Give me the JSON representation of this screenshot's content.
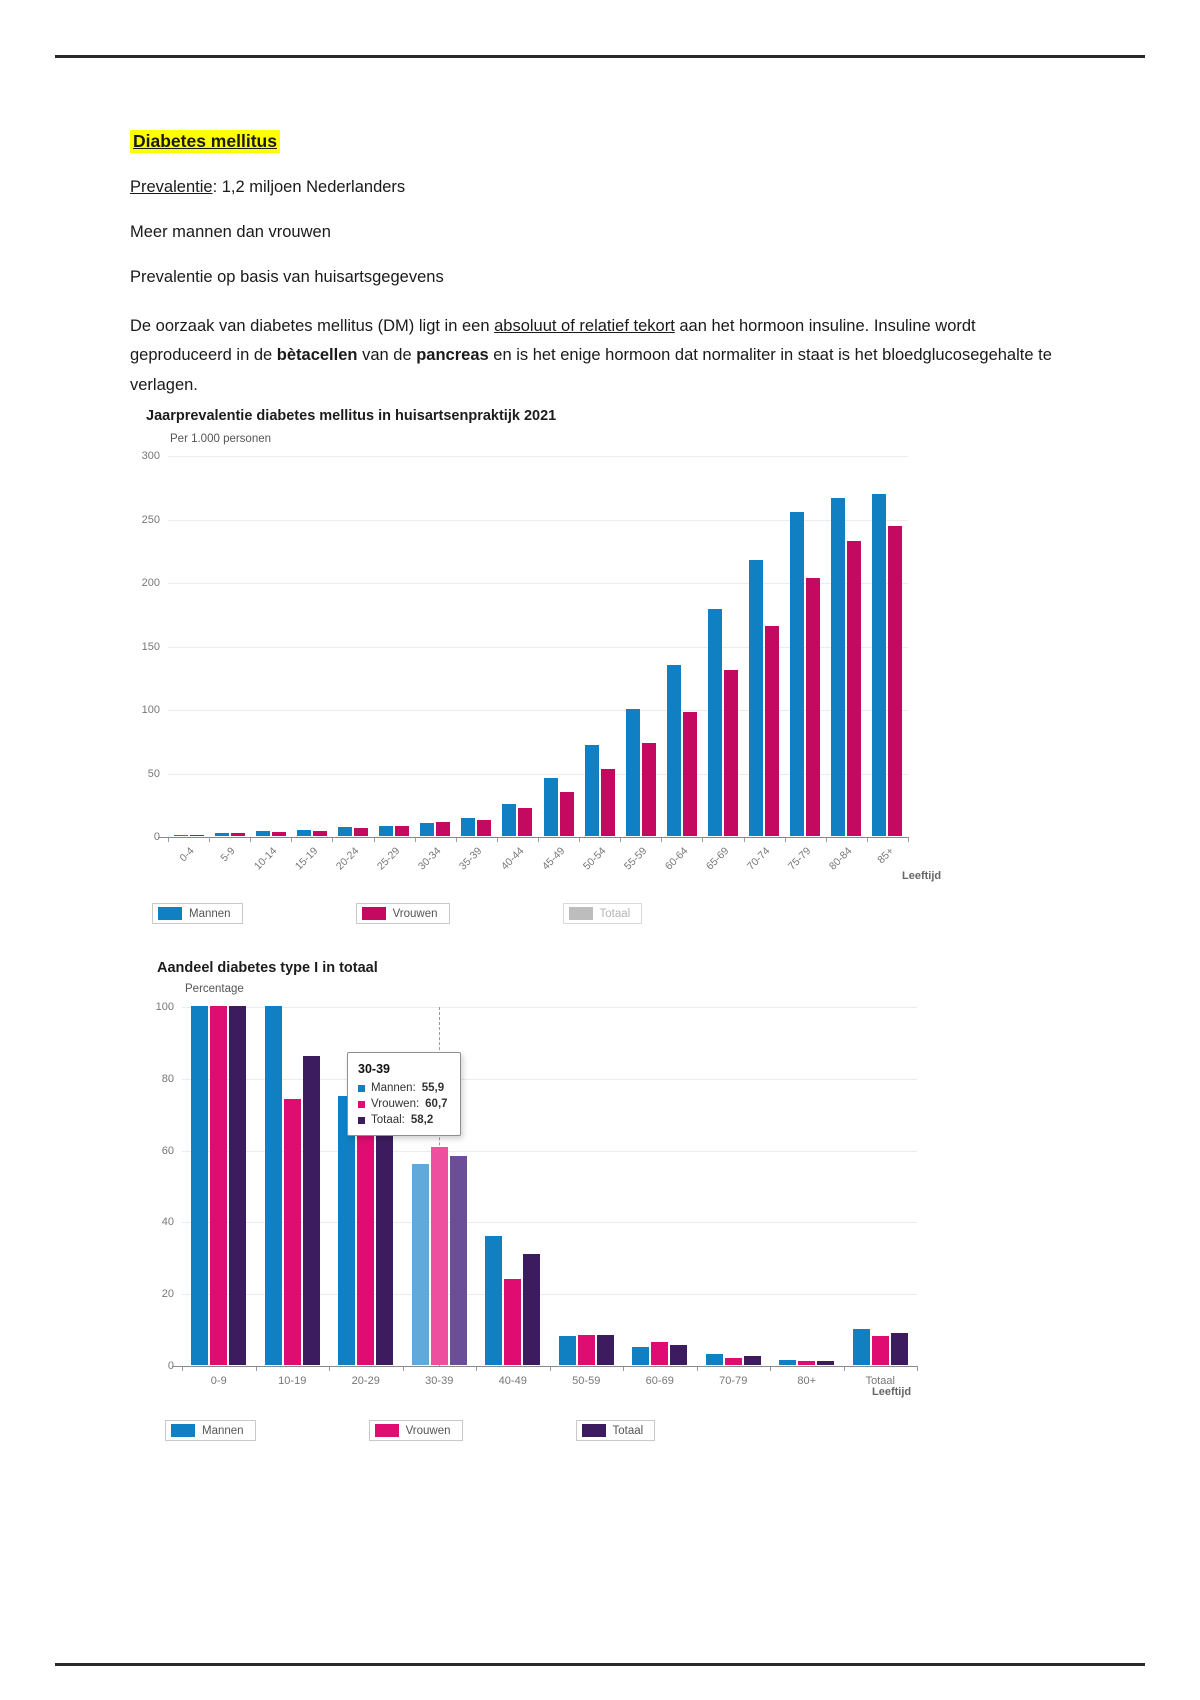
{
  "document": {
    "title": "Diabetes mellitus",
    "line1_label": "Prevalentie",
    "line1_rest": ": 1,2 miljoen Nederlanders",
    "line2": "Meer mannen dan vrouwen",
    "line3": "Prevalentie op basis van huisartsgegevens",
    "paragraph": {
      "part1": "De oorzaak van diabetes mellitus (DM) ligt in een ",
      "underlined": "absoluut of relatief tekort",
      "part2": " aan het hormoon insuline. Insuline wordt geproduceerd in de ",
      "bold1": "bètacellen",
      "part3": " van de ",
      "bold2": "pancreas",
      "part4": " en is het enige hormoon dat normaliter in staat is het bloedglucosegehalte te verlagen."
    }
  },
  "colors": {
    "mannen_blue": "#1180c2",
    "vrouwen_pink_chart1": "#c40a60",
    "vrouwen_pink_chart2": "#df0d72",
    "totaal_purple": "#3c1c5e",
    "totaal_disabled_gray": "#bdbdbd",
    "highlight_yellow": "#ffff00"
  },
  "chart_data": [
    {
      "type": "bar",
      "title": "Jaarprevalentie diabetes mellitus in huisartsenpraktijk 2021",
      "ylabel": "Per 1.000 personen",
      "xlabel": "Leeftijd",
      "ylim": [
        0,
        300
      ],
      "yticks": [
        0,
        50,
        100,
        150,
        200,
        250,
        300
      ],
      "grid": true,
      "legend_position": "bottom",
      "categories": [
        "0-4",
        "5-9",
        "10-14",
        "15-19",
        "20-24",
        "25-29",
        "30-34",
        "35-39",
        "40-44",
        "45-49",
        "50-54",
        "55-59",
        "60-64",
        "65-69",
        "70-74",
        "75-79",
        "80-84",
        "85+"
      ],
      "series": [
        {
          "name": "Mannen",
          "color": "#1180c2",
          "values": [
            0.5,
            2,
            4,
            5,
            7,
            8,
            10,
            14,
            25,
            46,
            72,
            100,
            135,
            179,
            217,
            255,
            266,
            269
          ]
        },
        {
          "name": "Vrouwen",
          "color": "#c40a60",
          "values": [
            0.5,
            2,
            3,
            4,
            6,
            8,
            11,
            13,
            22,
            35,
            53,
            73,
            98,
            131,
            165,
            203,
            232,
            244
          ]
        },
        {
          "name": "Totaal",
          "color": "#bdbdbd",
          "hidden": true,
          "values": []
        }
      ]
    },
    {
      "type": "bar",
      "title": "Aandeel diabetes type I in totaal",
      "ylabel": "Percentage",
      "xlabel": "Leeftijd",
      "ylim": [
        0,
        100
      ],
      "yticks": [
        0,
        20,
        40,
        60,
        80,
        100
      ],
      "grid": true,
      "legend_position": "bottom",
      "categories": [
        "0-9",
        "10-19",
        "20-29",
        "30-39",
        "40-49",
        "50-59",
        "60-69",
        "70-79",
        "80+",
        "Totaal"
      ],
      "highlight_group": "30-39",
      "series": [
        {
          "name": "Mannen",
          "color": "#1180c2",
          "highlight_color": "#62a9db",
          "values": [
            100,
            100,
            75,
            55.9,
            36,
            8,
            5,
            3,
            1.5,
            10
          ]
        },
        {
          "name": "Vrouwen",
          "color": "#df0d72",
          "highlight_color": "#ee4f9f",
          "values": [
            100,
            74,
            72,
            60.7,
            24,
            8.5,
            6.5,
            2,
            1,
            8
          ]
        },
        {
          "name": "Totaal",
          "color": "#3c1c5e",
          "highlight_color": "#6c4d99",
          "values": [
            100,
            86,
            73,
            58.2,
            31,
            8.5,
            5.5,
            2.5,
            1,
            9
          ]
        }
      ],
      "tooltip": {
        "title": "30-39",
        "rows": [
          {
            "label": "Mannen:",
            "value": "55,9"
          },
          {
            "label": "Vrouwen:",
            "value": "60,7"
          },
          {
            "label": "Totaal:",
            "value": "58,2"
          }
        ]
      }
    }
  ]
}
